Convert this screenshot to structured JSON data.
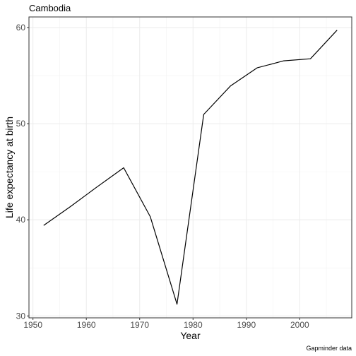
{
  "chart_data": {
    "type": "line",
    "title": "Cambodia",
    "xlabel": "Year",
    "ylabel": "Life expectancy at birth",
    "caption": "Gapminder data",
    "xlim": [
      1949.25,
      2009.75
    ],
    "ylim": [
      29.8,
      61.1
    ],
    "x_ticks": [
      1950,
      1960,
      1970,
      1980,
      1990,
      2000
    ],
    "y_ticks": [
      30,
      40,
      50,
      60
    ],
    "x_tick_labels": [
      "1950",
      "1960",
      "1970",
      "1980",
      "1990",
      "2000"
    ],
    "y_tick_labels": [
      "30",
      "40",
      "50",
      "60"
    ],
    "grid": true,
    "series": [
      {
        "color": "#000000",
        "x": [
          1952,
          1957,
          1962,
          1967,
          1972,
          1977,
          1982,
          1987,
          1992,
          1997,
          2002,
          2007
        ],
        "y": [
          39.417,
          41.366,
          43.415,
          45.415,
          40.317,
          31.22,
          50.957,
          53.914,
          55.803,
          56.534,
          56.752,
          59.723
        ]
      }
    ]
  }
}
